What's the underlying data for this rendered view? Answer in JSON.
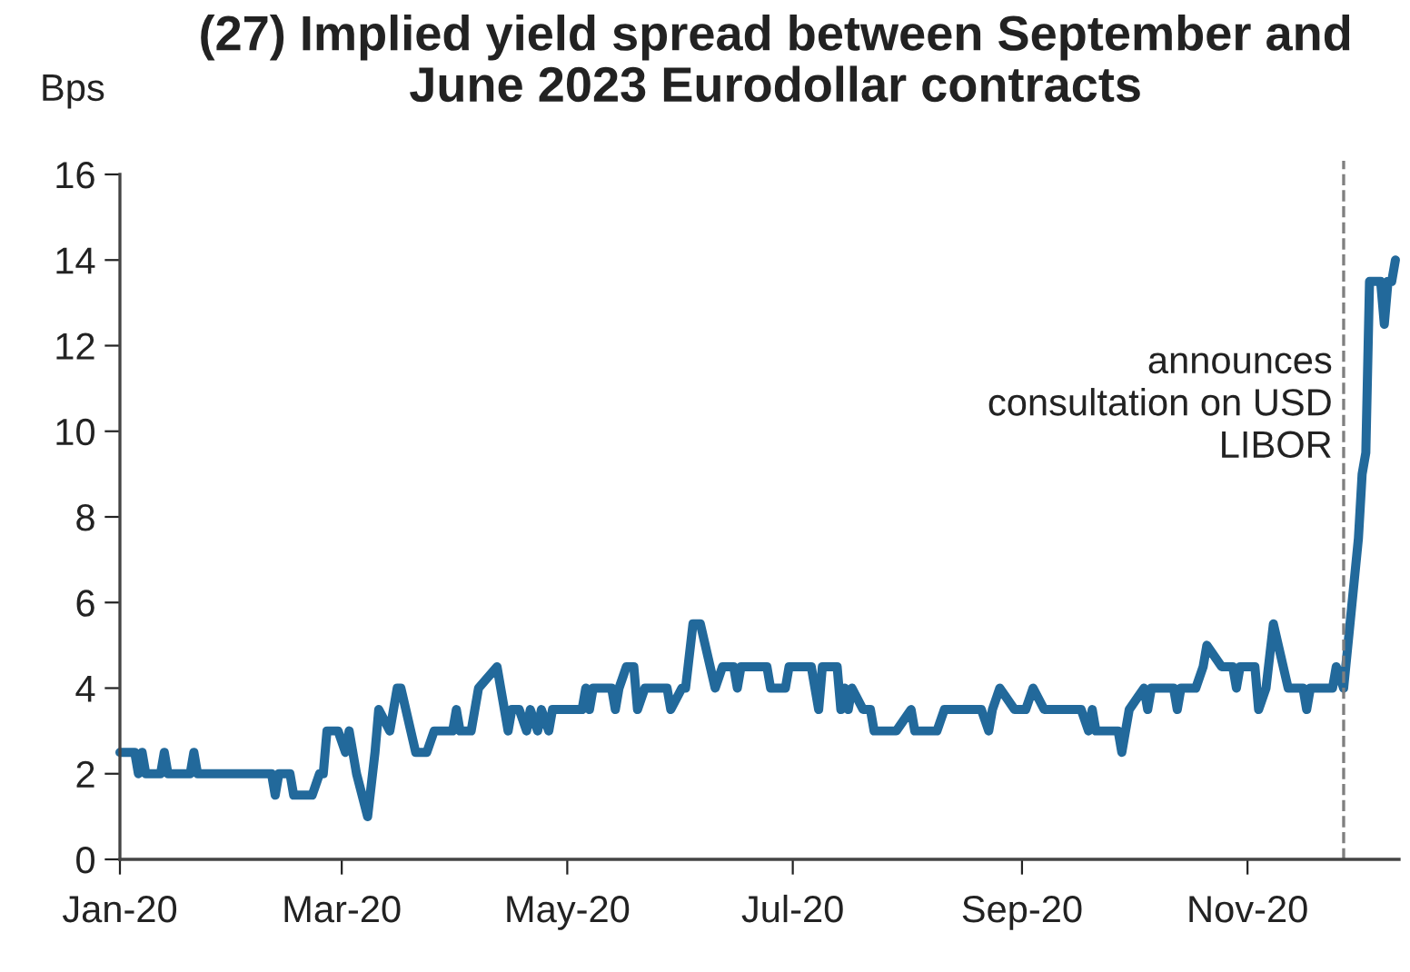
{
  "chart_data": {
    "type": "line",
    "title": "(27) Implied yield spread between September and\nJune 2023 Eurodollar contracts",
    "ylabel": "Bps",
    "x": [
      "2020-01-01",
      "2020-01-05",
      "2020-01-06",
      "2020-01-07",
      "2020-01-08",
      "2020-01-12",
      "2020-01-13",
      "2020-01-14",
      "2020-01-20",
      "2020-01-21",
      "2020-01-22",
      "2020-02-11",
      "2020-02-12",
      "2020-02-13",
      "2020-02-16",
      "2020-02-17",
      "2020-02-22",
      "2020-02-24",
      "2020-02-25",
      "2020-02-26",
      "2020-02-29",
      "2020-03-02",
      "2020-03-03",
      "2020-03-05",
      "2020-03-08",
      "2020-03-10",
      "2020-03-11",
      "2020-03-14",
      "2020-03-16",
      "2020-03-17",
      "2020-03-21",
      "2020-03-24",
      "2020-03-26",
      "2020-03-31",
      "2020-04-01",
      "2020-04-02",
      "2020-04-05",
      "2020-04-07",
      "2020-04-12",
      "2020-04-15",
      "2020-04-16",
      "2020-04-18",
      "2020-04-20",
      "2020-04-21",
      "2020-04-23",
      "2020-04-24",
      "2020-04-26",
      "2020-04-27",
      "2020-05-05",
      "2020-05-06",
      "2020-05-07",
      "2020-05-08",
      "2020-05-13",
      "2020-05-14",
      "2020-05-15",
      "2020-05-17",
      "2020-05-19",
      "2020-05-20",
      "2020-05-22",
      "2020-05-28",
      "2020-05-29",
      "2020-06-01",
      "2020-06-02",
      "2020-06-04",
      "2020-06-06",
      "2020-06-10",
      "2020-06-12",
      "2020-06-15",
      "2020-06-16",
      "2020-06-17",
      "2020-06-24",
      "2020-06-25",
      "2020-06-29",
      "2020-06-30",
      "2020-07-06",
      "2020-07-08",
      "2020-07-09",
      "2020-07-13",
      "2020-07-14",
      "2020-07-15",
      "2020-07-16",
      "2020-07-17",
      "2020-07-20",
      "2020-07-22",
      "2020-07-23",
      "2020-07-29",
      "2020-08-02",
      "2020-08-03",
      "2020-08-09",
      "2020-08-11",
      "2020-08-21",
      "2020-08-23",
      "2020-08-24",
      "2020-08-26",
      "2020-08-30",
      "2020-09-02",
      "2020-09-04",
      "2020-09-07",
      "2020-09-17",
      "2020-09-19",
      "2020-09-20",
      "2020-09-21",
      "2020-09-27",
      "2020-09-28",
      "2020-09-30",
      "2020-10-04",
      "2020-10-05",
      "2020-10-06",
      "2020-10-12",
      "2020-10-13",
      "2020-10-14",
      "2020-10-18",
      "2020-10-20",
      "2020-10-21",
      "2020-10-25",
      "2020-10-28",
      "2020-10-29",
      "2020-10-30",
      "2020-11-03",
      "2020-11-04",
      "2020-11-06",
      "2020-11-08",
      "2020-11-12",
      "2020-11-16",
      "2020-11-17",
      "2020-11-18",
      "2020-11-24",
      "2020-11-25",
      "2020-11-27",
      "2020-12-01",
      "2020-12-02",
      "2020-12-03",
      "2020-12-04",
      "2020-12-07",
      "2020-12-08",
      "2020-12-09",
      "2020-12-10",
      "2020-12-11"
    ],
    "series": [
      {
        "color": "#22699b",
        "values": [
          2.5,
          2.5,
          2,
          2.5,
          2,
          2,
          2.5,
          2,
          2,
          2.5,
          2,
          2,
          1.5,
          2,
          2,
          1.5,
          1.5,
          2,
          2,
          3,
          3,
          2.5,
          3,
          2,
          1,
          2.5,
          3.5,
          3,
          4,
          4,
          2.5,
          2.5,
          3,
          3,
          3.5,
          3,
          3,
          4,
          4.5,
          3,
          3.5,
          3.5,
          3,
          3.5,
          3,
          3.5,
          3,
          3.5,
          3.5,
          4,
          3.5,
          4,
          4,
          3.5,
          4,
          4.5,
          4.5,
          3.5,
          4,
          4,
          3.5,
          4,
          4,
          5.5,
          5.5,
          4,
          4.5,
          4.5,
          4,
          4.5,
          4.5,
          4,
          4,
          4.5,
          4.5,
          3.5,
          4.5,
          4.5,
          3.5,
          4,
          3.5,
          4,
          3.5,
          3.5,
          3,
          3,
          3.5,
          3,
          3,
          3.5,
          3.5,
          3,
          3.5,
          4,
          3.5,
          3.5,
          4,
          3.5,
          3.5,
          3,
          3.5,
          3,
          3,
          2.5,
          3.5,
          4,
          3.5,
          4,
          4,
          3.5,
          4,
          4,
          4.5,
          5,
          4.5,
          4.5,
          4,
          4.5,
          4.5,
          3.5,
          4,
          5.5,
          4,
          4,
          3.5,
          4,
          4,
          4.5,
          4,
          7.5,
          9,
          9.5,
          13.5,
          13.5,
          12.5,
          13.5,
          13.5,
          14
        ]
      }
    ],
    "xlim": [
      "2020-01-01",
      "2020-12-12"
    ],
    "xticks": [
      {
        "value": "2020-01-01",
        "label": "Jan-20"
      },
      {
        "value": "2020-03-01",
        "label": "Mar-20"
      },
      {
        "value": "2020-05-01",
        "label": "May-20"
      },
      {
        "value": "2020-07-01",
        "label": "Jul-20"
      },
      {
        "value": "2020-09-01",
        "label": "Sep-20"
      },
      {
        "value": "2020-11-01",
        "label": "Nov-20"
      }
    ],
    "ylim": [
      0,
      16
    ],
    "yticks": [
      0,
      2,
      4,
      6,
      8,
      10,
      12,
      14,
      16
    ],
    "ref_lines": [
      {
        "axis": "x",
        "value": "2020-11-27",
        "label": "announces\nconsultation on USD\nLIBOR",
        "color": "#7f7f7f",
        "line_style": "dashed"
      }
    ],
    "grid": false,
    "legend": false,
    "marker": "none",
    "line_style": "solid"
  }
}
